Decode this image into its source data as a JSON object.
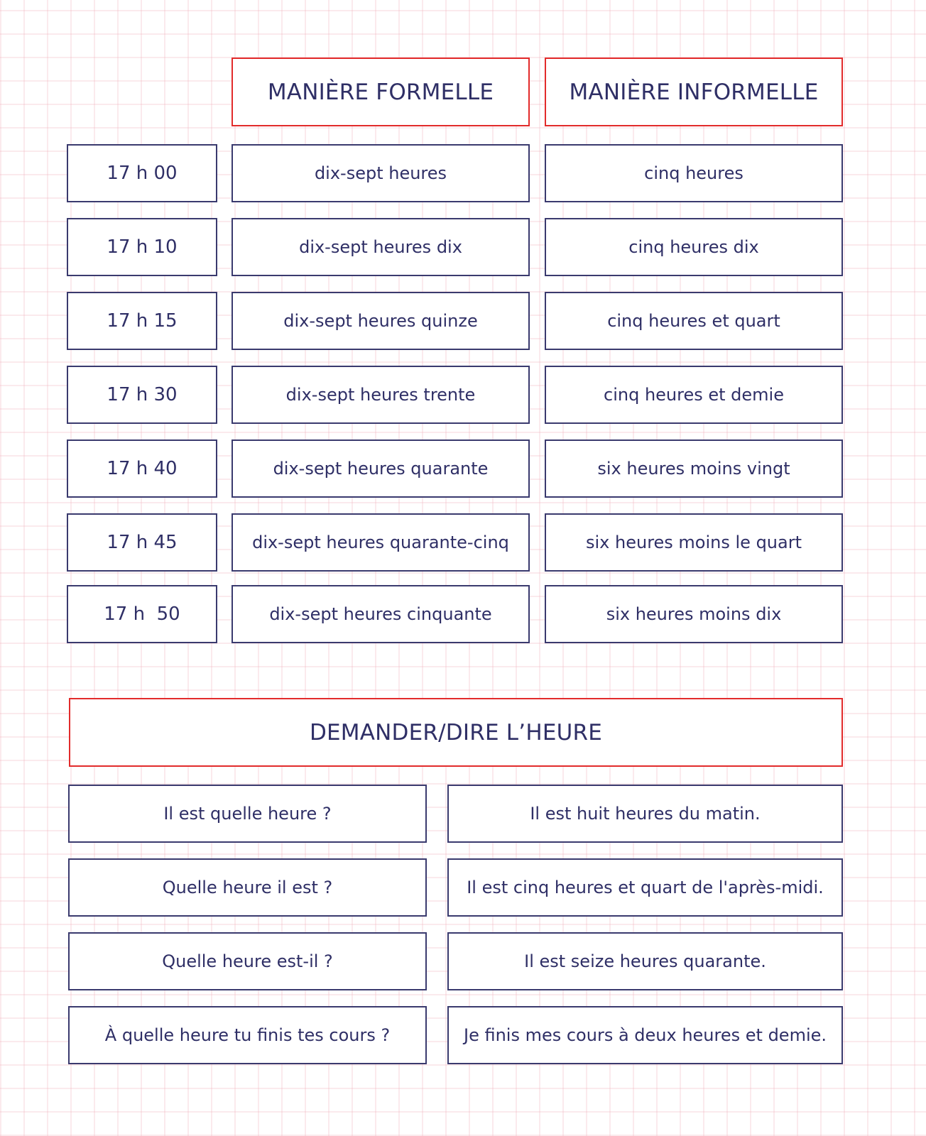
{
  "table1": {
    "headers": {
      "formal": "MANIÈRE FORMELLE",
      "informal": "MANIÈRE INFORMELLE"
    },
    "rows": [
      {
        "time": "17 h 00",
        "formal": "dix-sept heures",
        "informal": "cinq heures"
      },
      {
        "time": "17 h 10",
        "formal": "dix-sept heures dix",
        "informal": "cinq heures dix"
      },
      {
        "time": "17 h 15",
        "formal": "dix-sept heures quinze",
        "informal": "cinq heures et quart"
      },
      {
        "time": "17 h 30",
        "formal": "dix-sept heures trente",
        "informal": "cinq heures et demie"
      },
      {
        "time": "17 h 40",
        "formal": "dix-sept heures quarante",
        "informal": "six heures moins vingt"
      },
      {
        "time": "17 h 45",
        "formal": "dix-sept heures quarante-cinq",
        "informal": "six heures moins le quart"
      },
      {
        "time": "17 h  50",
        "formal": "dix-sept heures cinquante",
        "informal": "six heures moins dix"
      }
    ]
  },
  "table2": {
    "header": "DEMANDER/DIRE L’HEURE",
    "rows": [
      {
        "question": "Il est quelle heure ?",
        "answer": "Il est huit heures du matin."
      },
      {
        "question": "Quelle heure il est ?",
        "answer": "Il est cinq heures et quart de l'après-midi."
      },
      {
        "question": "Quelle heure est-il ?",
        "answer": "Il est seize heures quarante."
      },
      {
        "question": "À quelle heure tu finis tes cours ?",
        "answer": "Je finis mes cours à deux heures et demie."
      }
    ]
  }
}
